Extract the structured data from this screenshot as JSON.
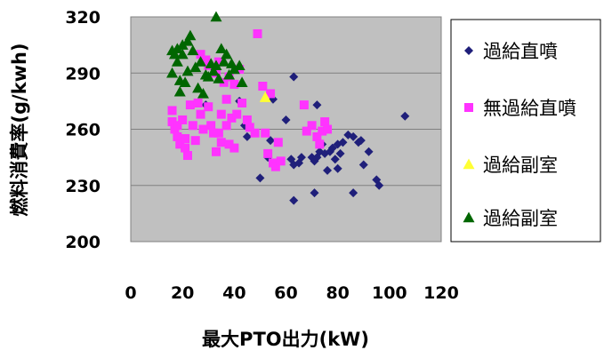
{
  "chart_data": {
    "type": "scatter",
    "xlabel": "最大PTO出力(kW)",
    "ylabel": "燃料消費率(g/kwh)",
    "xlim": [
      0,
      120
    ],
    "ylim": [
      200,
      320
    ],
    "xticks": [
      "0",
      "20",
      "40",
      "60",
      "80",
      "100",
      "120"
    ],
    "yticks": [
      "200",
      "230",
      "260",
      "290",
      "320"
    ],
    "grid": "horizontal",
    "legend_position": "right",
    "series": [
      {
        "name": "過給直噴",
        "marker": "diamond",
        "color": "#1f1f7a",
        "points": [
          [
            29,
            273
          ],
          [
            42,
            275
          ],
          [
            44,
            262
          ],
          [
            45,
            256
          ],
          [
            50,
            234
          ],
          [
            53,
            245
          ],
          [
            54,
            254
          ],
          [
            55,
            276
          ],
          [
            60,
            265
          ],
          [
            62,
            244
          ],
          [
            63,
            222
          ],
          [
            63,
            241
          ],
          [
            63,
            288
          ],
          [
            65,
            242
          ],
          [
            66,
            245
          ],
          [
            70,
            245
          ],
          [
            71,
            226
          ],
          [
            71,
            243
          ],
          [
            72,
            273
          ],
          [
            72,
            245
          ],
          [
            73,
            248
          ],
          [
            74,
            252
          ],
          [
            75,
            247
          ],
          [
            76,
            238
          ],
          [
            77,
            248
          ],
          [
            78,
            250
          ],
          [
            79,
            244
          ],
          [
            80,
            239
          ],
          [
            80,
            252
          ],
          [
            81,
            247
          ],
          [
            82,
            253
          ],
          [
            84,
            257
          ],
          [
            86,
            226
          ],
          [
            86,
            256
          ],
          [
            88,
            253
          ],
          [
            89,
            254
          ],
          [
            90,
            241
          ],
          [
            92,
            248
          ],
          [
            95,
            233
          ],
          [
            96,
            230
          ],
          [
            106,
            267
          ]
        ]
      },
      {
        "name": "無過給直噴",
        "marker": "square",
        "color": "#ff33ff",
        "points": [
          [
            16,
            270
          ],
          [
            16,
            264
          ],
          [
            17,
            260
          ],
          [
            18,
            256
          ],
          [
            18,
            262
          ],
          [
            19,
            252
          ],
          [
            20,
            265
          ],
          [
            21,
            255
          ],
          [
            21,
            250
          ],
          [
            22,
            246
          ],
          [
            23,
            273
          ],
          [
            24,
            262
          ],
          [
            25,
            254
          ],
          [
            26,
            274
          ],
          [
            27,
            268
          ],
          [
            27,
            300
          ],
          [
            28,
            260
          ],
          [
            29,
            297
          ],
          [
            30,
            294
          ],
          [
            30,
            272
          ],
          [
            31,
            262
          ],
          [
            32,
            258
          ],
          [
            33,
            290
          ],
          [
            33,
            248
          ],
          [
            34,
            296
          ],
          [
            34,
            258
          ],
          [
            35,
            253
          ],
          [
            35,
            268
          ],
          [
            36,
            285
          ],
          [
            37,
            262
          ],
          [
            37,
            276
          ],
          [
            38,
            288
          ],
          [
            38,
            252
          ],
          [
            39,
            266
          ],
          [
            40,
            284
          ],
          [
            40,
            250
          ],
          [
            41,
            268
          ],
          [
            42,
            292
          ],
          [
            43,
            274
          ],
          [
            45,
            265
          ],
          [
            46,
            261
          ],
          [
            48,
            258
          ],
          [
            49,
            311
          ],
          [
            51,
            283
          ],
          [
            52,
            258
          ],
          [
            53,
            247
          ],
          [
            54,
            279
          ],
          [
            55,
            242
          ],
          [
            56,
            240
          ],
          [
            57,
            253
          ],
          [
            58,
            243
          ],
          [
            67,
            273
          ],
          [
            68,
            259
          ],
          [
            70,
            262
          ],
          [
            72,
            256
          ],
          [
            73,
            252
          ],
          [
            74,
            259
          ],
          [
            75,
            264
          ],
          [
            76,
            260
          ]
        ]
      },
      {
        "name": "過給副室",
        "marker": "triangle",
        "color": "#ffff33",
        "points": [
          [
            52,
            277
          ]
        ]
      },
      {
        "name": "過給副室",
        "marker": "triangle",
        "color": "#006600",
        "points": [
          [
            16,
            290
          ],
          [
            16,
            302
          ],
          [
            17,
            300
          ],
          [
            18,
            303
          ],
          [
            18,
            296
          ],
          [
            19,
            286
          ],
          [
            19,
            280
          ],
          [
            20,
            300
          ],
          [
            20,
            305
          ],
          [
            21,
            285
          ],
          [
            22,
            307
          ],
          [
            22,
            291
          ],
          [
            23,
            310
          ],
          [
            24,
            302
          ],
          [
            25,
            293
          ],
          [
            26,
            282
          ],
          [
            27,
            296
          ],
          [
            28,
            279
          ],
          [
            29,
            289
          ],
          [
            30,
            288
          ],
          [
            31,
            295
          ],
          [
            32,
            291
          ],
          [
            33,
            294
          ],
          [
            33,
            320
          ],
          [
            34,
            287
          ],
          [
            35,
            303
          ],
          [
            36,
            296
          ],
          [
            37,
            300
          ],
          [
            38,
            289
          ],
          [
            39,
            295
          ],
          [
            40,
            292
          ],
          [
            42,
            294
          ],
          [
            43,
            285
          ]
        ]
      }
    ]
  }
}
